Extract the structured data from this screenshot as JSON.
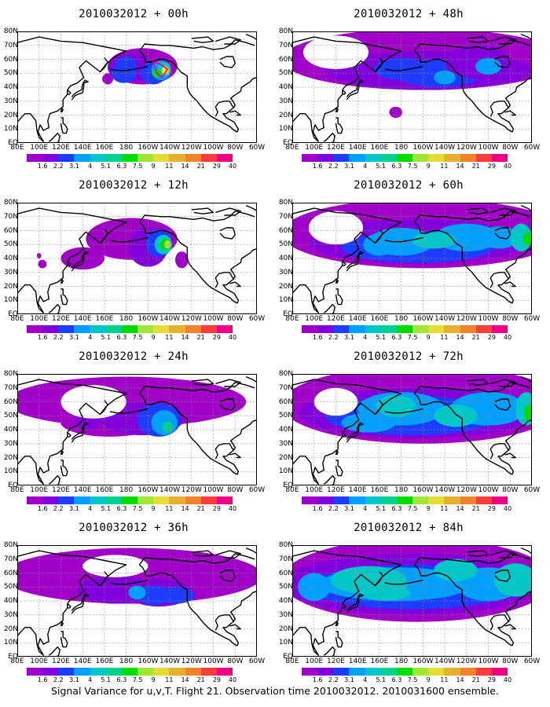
{
  "panels": [
    {
      "title": "2010032012 + 00h",
      "stage": 0
    },
    {
      "title": "2010032012 + 48h",
      "stage": 4
    },
    {
      "title": "2010032012 + 12h",
      "stage": 1
    },
    {
      "title": "2010032012 + 60h",
      "stage": 5
    },
    {
      "title": "2010032012 + 24h",
      "stage": 2
    },
    {
      "title": "2010032012 + 72h",
      "stage": 6
    },
    {
      "title": "2010032012 + 36h",
      "stage": 3
    },
    {
      "title": "2010032012 + 84h",
      "stage": 7
    }
  ],
  "x_tick_labels": [
    "80E",
    "100E",
    "120E",
    "140E",
    "160E",
    "180",
    "160W",
    "140W",
    "120W",
    "100W",
    "80W",
    "60W"
  ],
  "y_tick_labels": [
    "EQ",
    "10N",
    "20N",
    "30N",
    "40N",
    "50N",
    "60N",
    "70N",
    "80N"
  ],
  "colorbar": {
    "labels": [
      "1.6",
      "2.2",
      "3.1",
      "4",
      "5.1",
      "6.3",
      "7.5",
      "9",
      "11",
      "14",
      "21",
      "29",
      "40"
    ],
    "colors": [
      "#a000c8",
      "#8200dc",
      "#1e3cff",
      "#00a0ff",
      "#00c8c8",
      "#00d28c",
      "#00dc00",
      "#a0e632",
      "#e6dc32",
      "#e6af2d",
      "#f08228",
      "#fa3c3c",
      "#f00082"
    ]
  },
  "caption": "Signal Variance for u,v,T. Flight 21. Observation time 2010032012. 2010031600 ensemble."
}
